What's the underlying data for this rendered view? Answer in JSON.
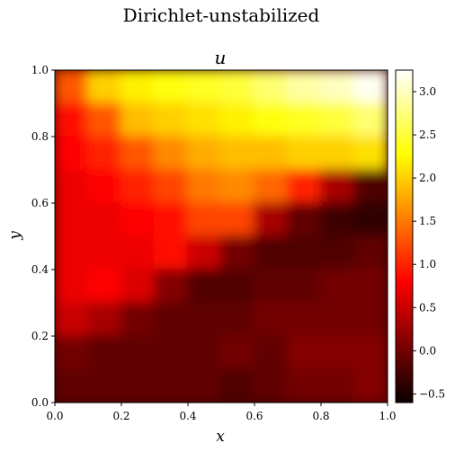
{
  "chart_data": {
    "type": "heatmap",
    "suptitle": "Dirichlet-unstabilized",
    "title": "u",
    "xlabel": "x",
    "ylabel": "y",
    "xlim": [
      0.0,
      1.0
    ],
    "ylim": [
      0.0,
      1.0
    ],
    "xticks": [
      "0.0",
      "0.2",
      "0.4",
      "0.6",
      "0.8",
      "1.0"
    ],
    "yticks": [
      "0.0",
      "0.2",
      "0.4",
      "0.6",
      "0.8",
      "1.0"
    ],
    "colorbar": {
      "colormap": "hot",
      "range": [
        -0.6,
        3.25
      ],
      "ticks": [
        "−0.5",
        "0.0",
        "0.5",
        "1.0",
        "1.5",
        "2.0",
        "2.5",
        "3.0"
      ],
      "tick_values": [
        -0.5,
        0.0,
        0.5,
        1.0,
        1.5,
        2.0,
        2.5,
        3.0
      ]
    },
    "grid": false,
    "x_centers": [
      0.05,
      0.15,
      0.25,
      0.35,
      0.45,
      0.55,
      0.65,
      0.75,
      0.85,
      0.95
    ],
    "y_centers": [
      0.95,
      0.85,
      0.75,
      0.65,
      0.55,
      0.45,
      0.35,
      0.25,
      0.15,
      0.05
    ],
    "values": [
      [
        1.3,
        2.0,
        2.2,
        2.3,
        2.4,
        2.5,
        2.7,
        2.9,
        3.0,
        3.2
      ],
      [
        0.9,
        1.3,
        1.9,
        2.0,
        2.1,
        2.2,
        2.3,
        2.4,
        2.5,
        2.7
      ],
      [
        0.8,
        1.0,
        1.3,
        1.6,
        1.8,
        1.9,
        1.9,
        2.0,
        2.0,
        2.1
      ],
      [
        0.7,
        0.8,
        1.0,
        1.2,
        1.5,
        1.6,
        1.4,
        1.0,
        0.3,
        -0.2
      ],
      [
        0.7,
        0.7,
        0.8,
        0.9,
        1.2,
        1.2,
        0.3,
        -0.1,
        -0.3,
        -0.4
      ],
      [
        0.7,
        0.7,
        0.7,
        0.9,
        0.5,
        0.0,
        -0.2,
        -0.2,
        -0.2,
        -0.1
      ],
      [
        0.7,
        0.8,
        0.6,
        0.1,
        -0.2,
        -0.2,
        -0.1,
        -0.1,
        0.0,
        0.0
      ],
      [
        0.5,
        0.3,
        0.0,
        -0.1,
        -0.1,
        -0.1,
        0.0,
        0.0,
        0.0,
        0.0
      ],
      [
        0.0,
        -0.1,
        -0.1,
        -0.1,
        -0.1,
        0.0,
        -0.1,
        0.1,
        0.1,
        0.1
      ],
      [
        -0.1,
        -0.1,
        -0.1,
        -0.1,
        -0.1,
        -0.2,
        -0.1,
        0.0,
        0.0,
        0.1
      ]
    ]
  }
}
